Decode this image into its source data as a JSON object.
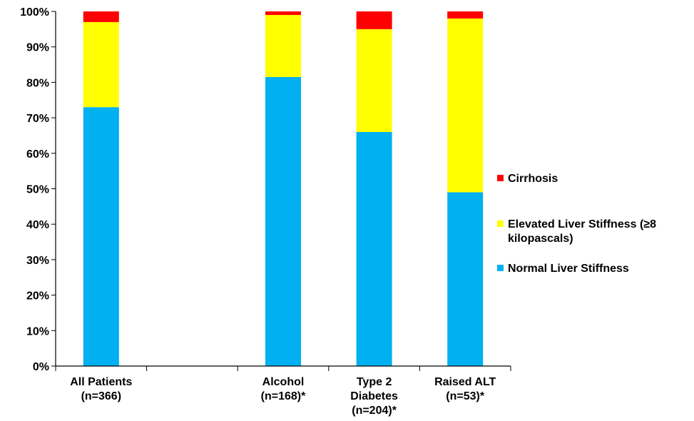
{
  "chart_data": {
    "type": "bar",
    "stacked": true,
    "percent": true,
    "ylim": [
      0,
      100
    ],
    "y_ticks": [
      "0%",
      "10%",
      "20%",
      "30%",
      "40%",
      "50%",
      "60%",
      "70%",
      "80%",
      "90%",
      "100%"
    ],
    "categories": [
      {
        "lines": [
          "All Patients",
          "(n=366)"
        ],
        "slot": 0
      },
      {
        "lines": [
          "Alcohol",
          "(n=168)*"
        ],
        "slot": 2
      },
      {
        "lines": [
          "Type 2",
          "Diabetes",
          "(n=204)*"
        ],
        "slot": 3
      },
      {
        "lines": [
          "Raised ALT",
          "(n=53)*"
        ],
        "slot": 4
      }
    ],
    "series": [
      {
        "name": "Normal Liver Stiffness",
        "color": "#00B0F0",
        "values": [
          73,
          81.5,
          66,
          49
        ]
      },
      {
        "name": "Elevated Liver Stiffness (≥8 kilopascals)",
        "legend_lines": [
          "Elevated Liver Stiffness (≥8",
          "kilopascals)"
        ],
        "color": "#FFFF00",
        "values": [
          24,
          17.5,
          29,
          49
        ]
      },
      {
        "name": "Cirrhosis",
        "color": "#FF0000",
        "values": [
          3,
          1,
          5,
          2
        ]
      }
    ],
    "legend": {
      "placement": "right",
      "order": [
        "Cirrhosis",
        "Elevated Liver Stiffness (≥8 kilopascals)",
        "Normal Liver Stiffness"
      ]
    },
    "grid": false
  }
}
